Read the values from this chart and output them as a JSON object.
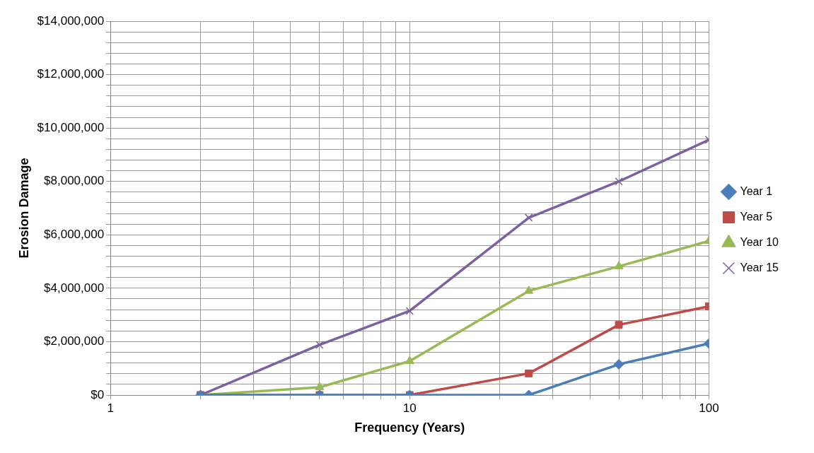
{
  "chart_data": {
    "type": "line",
    "xlabel": "Frequency (Years)",
    "ylabel": "Erosion Damage",
    "log": "x",
    "x": [
      2,
      5,
      10,
      25,
      50,
      100
    ],
    "xlim": [
      1,
      100
    ],
    "xticks": [
      1,
      {
        "value": 2,
        "label": null
      },
      {
        "value": 3,
        "label": null
      },
      {
        "value": 4,
        "label": null
      },
      {
        "value": 5,
        "label": null
      },
      {
        "value": 6,
        "label": null
      },
      {
        "value": 7,
        "label": null
      },
      {
        "value": 8,
        "label": null
      },
      {
        "value": 9,
        "label": null
      },
      10,
      {
        "value": 20,
        "label": null
      },
      {
        "value": 30,
        "label": null
      },
      {
        "value": 40,
        "label": null
      },
      {
        "value": 50,
        "label": null
      },
      {
        "value": 60,
        "label": null
      },
      {
        "value": 70,
        "label": null
      },
      {
        "value": 80,
        "label": null
      },
      {
        "value": 90,
        "label": null
      },
      100
    ],
    "ylim": [
      0,
      14000000
    ],
    "yticks": [
      {
        "value": 0,
        "label": "$0"
      },
      {
        "value": 400000,
        "label": null
      },
      {
        "value": 800000,
        "label": null
      },
      {
        "value": 1200000,
        "label": null
      },
      {
        "value": 1600000,
        "label": null
      },
      {
        "value": 2000000,
        "label": "$2,000,000"
      },
      {
        "value": 2400000,
        "label": null
      },
      {
        "value": 2800000,
        "label": null
      },
      {
        "value": 3200000,
        "label": null
      },
      {
        "value": 3600000,
        "label": null
      },
      {
        "value": 4000000,
        "label": "$4,000,000"
      },
      {
        "value": 4400000,
        "label": null
      },
      {
        "value": 4800000,
        "label": null
      },
      {
        "value": 5200000,
        "label": null
      },
      {
        "value": 5600000,
        "label": null
      },
      {
        "value": 6000000,
        "label": "$6,000,000"
      },
      {
        "value": 6400000,
        "label": null
      },
      {
        "value": 6800000,
        "label": null
      },
      {
        "value": 7200000,
        "label": null
      },
      {
        "value": 7600000,
        "label": null
      },
      {
        "value": 8000000,
        "label": "$8,000,000"
      },
      {
        "value": 8400000,
        "label": null
      },
      {
        "value": 8800000,
        "label": null
      },
      {
        "value": 9200000,
        "label": null
      },
      {
        "value": 9600000,
        "label": null
      },
      {
        "value": 10000000,
        "label": "$10,000,000"
      },
      {
        "value": 10400000,
        "label": null
      },
      {
        "value": 10800000,
        "label": null
      },
      {
        "value": 11200000,
        "label": null
      },
      {
        "value": 11600000,
        "label": null
      },
      {
        "value": 12000000,
        "label": "$12,000,000"
      },
      {
        "value": 12400000,
        "label": null
      },
      {
        "value": 12800000,
        "label": null
      },
      {
        "value": 13200000,
        "label": null
      },
      {
        "value": 13600000,
        "label": null
      },
      {
        "value": 14000000,
        "label": "$14,000,000"
      }
    ],
    "grid": true,
    "legend": "right",
    "line_style": "solid",
    "series": [
      {
        "name": "Year 1",
        "color": "#4a7ebb",
        "marker": "diamond",
        "values": [
          0,
          0,
          0,
          0,
          1150000,
          1930000
        ]
      },
      {
        "name": "Year 5",
        "color": "#be4b48",
        "marker": "square",
        "values": [
          0,
          0,
          0,
          810000,
          2630000,
          3320000
        ]
      },
      {
        "name": "Year 10",
        "color": "#98b954",
        "marker": "triangle",
        "values": [
          0,
          290000,
          1270000,
          3900000,
          4820000,
          5770000
        ]
      },
      {
        "name": "Year 15",
        "color": "#7d60a0",
        "marker": "cross",
        "values": [
          0,
          1880000,
          3150000,
          6640000,
          8000000,
          9560000
        ]
      }
    ]
  }
}
